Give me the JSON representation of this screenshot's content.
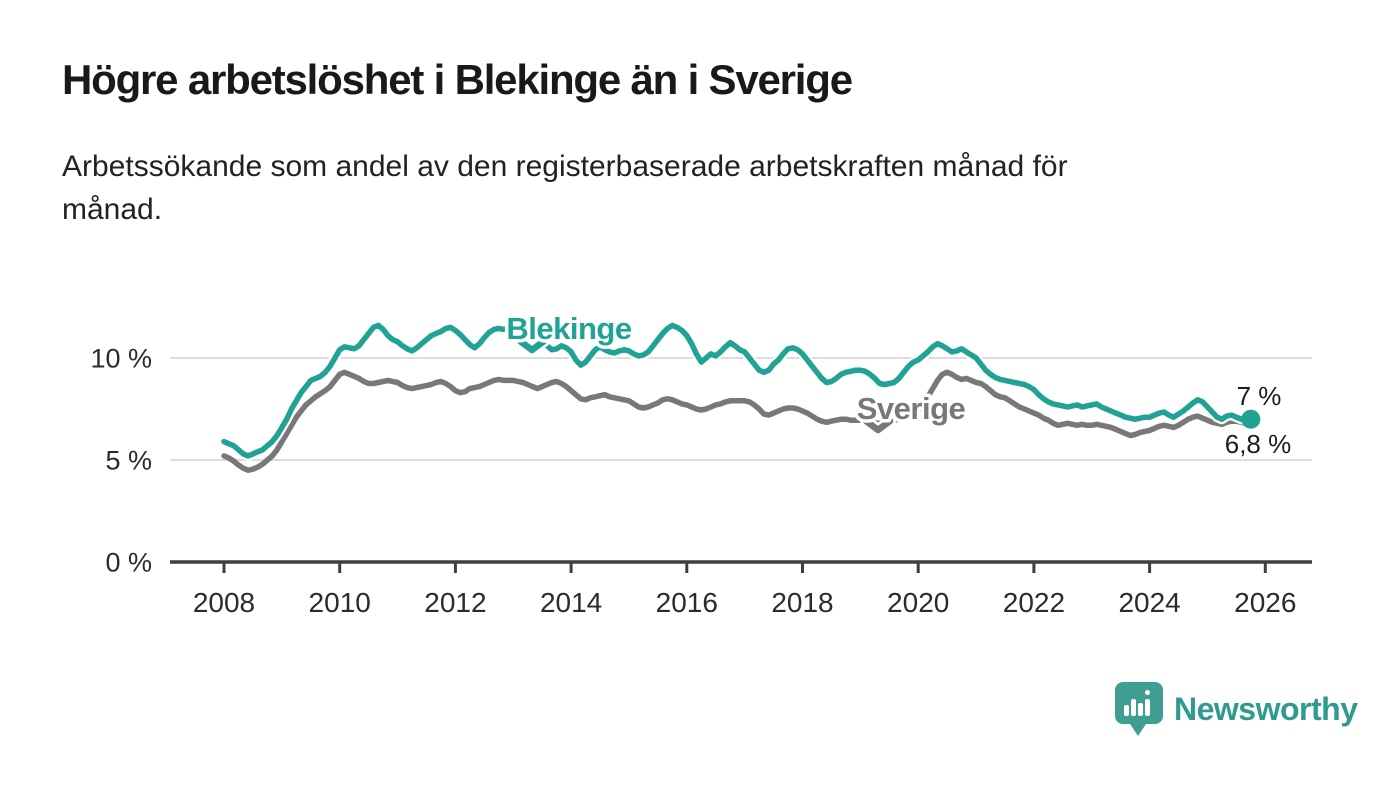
{
  "header": {
    "title": "Högre arbetslöshet i Blekinge än i Sverige",
    "subtitle": "Arbetssökande som andel av den registerbaserade arbetskraften månad för månad."
  },
  "footer": {
    "brand": "Newsworthy"
  },
  "colors": {
    "blekinge": "#20a295",
    "sverige": "#787878",
    "grid": "#dcdcdc",
    "axis": "#3f3f3f",
    "tick_text": "#2b2b2b",
    "value_text": "#1d1d1d",
    "brand_teal": "#2f9a8e",
    "brand_icon": "#3f9e92"
  },
  "chart_data": {
    "type": "line",
    "title": "Högre arbetslöshet i Blekinge än i Sverige",
    "subtitle": "Arbetssökande som andel av den registerbaserade arbetskraften månad för månad.",
    "unit": "%",
    "frequency": "monthly",
    "x_start": "2008-01",
    "x_end": "2025-10",
    "x_ticks": [
      2008,
      2010,
      2012,
      2014,
      2016,
      2018,
      2020,
      2022,
      2024,
      2026
    ],
    "y_ticks": [
      0,
      5,
      10
    ],
    "y_tick_labels": [
      "0 %",
      "5 %",
      "10 %"
    ],
    "ylim": [
      0,
      12.4
    ],
    "grid": "horizontal",
    "legend_position": "inline-labels",
    "series": [
      {
        "name": "Blekinge",
        "color": "#20a295",
        "end_label": "7 %",
        "values": [
          5.9,
          5.8,
          5.7,
          5.5,
          5.3,
          5.2,
          5.3,
          5.4,
          5.5,
          5.7,
          5.9,
          6.2,
          6.6,
          7.0,
          7.5,
          7.9,
          8.3,
          8.6,
          8.9,
          9.0,
          9.1,
          9.3,
          9.6,
          10.0,
          10.4,
          10.55,
          10.5,
          10.45,
          10.6,
          10.9,
          11.2,
          11.5,
          11.6,
          11.4,
          11.1,
          10.9,
          10.8,
          10.6,
          10.45,
          10.35,
          10.5,
          10.7,
          10.9,
          11.1,
          11.2,
          11.3,
          11.45,
          11.5,
          11.35,
          11.15,
          10.9,
          10.65,
          10.5,
          10.7,
          11.0,
          11.25,
          11.4,
          11.45,
          11.4,
          11.45,
          11.4,
          11.3,
          11.1,
          10.8,
          10.55,
          10.6,
          10.75,
          10.6,
          10.4,
          10.45,
          10.6,
          10.5,
          10.3,
          9.9,
          9.65,
          9.8,
          10.1,
          10.4,
          10.55,
          10.4,
          10.3,
          10.25,
          10.35,
          10.4,
          10.35,
          10.2,
          10.1,
          10.15,
          10.3,
          10.6,
          10.9,
          11.2,
          11.45,
          11.6,
          11.5,
          11.35,
          11.1,
          10.7,
          10.2,
          9.8,
          10.0,
          10.2,
          10.1,
          10.3,
          10.55,
          10.75,
          10.6,
          10.4,
          10.3,
          10.0,
          9.7,
          9.4,
          9.3,
          9.4,
          9.7,
          9.9,
          10.2,
          10.45,
          10.5,
          10.4,
          10.2,
          9.9,
          9.6,
          9.3,
          9.0,
          8.8,
          8.85,
          9.0,
          9.2,
          9.3,
          9.35,
          9.4,
          9.4,
          9.35,
          9.2,
          9.0,
          8.75,
          8.7,
          8.75,
          8.8,
          9.0,
          9.3,
          9.6,
          9.8,
          9.9,
          10.1,
          10.3,
          10.55,
          10.7,
          10.6,
          10.45,
          10.3,
          10.35,
          10.45,
          10.3,
          10.15,
          10.0,
          9.7,
          9.4,
          9.2,
          9.05,
          8.95,
          8.9,
          8.85,
          8.8,
          8.75,
          8.7,
          8.6,
          8.45,
          8.2,
          8.0,
          7.85,
          7.75,
          7.7,
          7.65,
          7.6,
          7.65,
          7.7,
          7.6,
          7.65,
          7.7,
          7.75,
          7.6,
          7.5,
          7.4,
          7.3,
          7.2,
          7.1,
          7.05,
          7.0,
          7.05,
          7.1,
          7.1,
          7.2,
          7.3,
          7.35,
          7.2,
          7.1,
          7.25,
          7.4,
          7.6,
          7.8,
          7.95,
          7.85,
          7.6,
          7.35,
          7.1,
          7.0,
          7.15,
          7.2,
          7.1,
          7.0,
          6.95,
          7.0
        ]
      },
      {
        "name": "Sverige",
        "color": "#787878",
        "end_label": "6,8 %",
        "values": [
          5.2,
          5.1,
          4.95,
          4.75,
          4.6,
          4.5,
          4.55,
          4.65,
          4.8,
          5.0,
          5.2,
          5.5,
          5.9,
          6.3,
          6.7,
          7.1,
          7.4,
          7.7,
          7.9,
          8.1,
          8.25,
          8.4,
          8.6,
          8.9,
          9.2,
          9.3,
          9.2,
          9.1,
          9.0,
          8.85,
          8.75,
          8.75,
          8.8,
          8.85,
          8.9,
          8.85,
          8.8,
          8.65,
          8.55,
          8.5,
          8.55,
          8.6,
          8.65,
          8.7,
          8.8,
          8.85,
          8.75,
          8.6,
          8.4,
          8.3,
          8.35,
          8.5,
          8.55,
          8.6,
          8.7,
          8.8,
          8.9,
          8.95,
          8.9,
          8.9,
          8.9,
          8.85,
          8.8,
          8.7,
          8.6,
          8.5,
          8.6,
          8.7,
          8.8,
          8.85,
          8.75,
          8.6,
          8.4,
          8.2,
          8.0,
          7.95,
          8.05,
          8.1,
          8.15,
          8.2,
          8.1,
          8.05,
          8.0,
          7.95,
          7.9,
          7.75,
          7.6,
          7.55,
          7.6,
          7.7,
          7.8,
          7.95,
          8.0,
          7.95,
          7.85,
          7.75,
          7.7,
          7.6,
          7.5,
          7.45,
          7.5,
          7.6,
          7.7,
          7.75,
          7.85,
          7.9,
          7.9,
          7.9,
          7.9,
          7.85,
          7.7,
          7.5,
          7.25,
          7.2,
          7.3,
          7.4,
          7.5,
          7.55,
          7.55,
          7.5,
          7.4,
          7.3,
          7.15,
          7.0,
          6.9,
          6.85,
          6.9,
          6.95,
          7.0,
          7.0,
          6.95,
          6.95,
          6.95,
          6.9,
          6.85,
          6.8,
          6.8,
          6.85,
          6.9,
          6.95,
          7.0,
          7.0,
          7.05,
          7.2,
          7.45,
          7.8,
          8.1,
          8.5,
          8.9,
          9.2,
          9.3,
          9.2,
          9.05,
          8.95,
          9.0,
          8.9,
          8.8,
          8.75,
          8.6,
          8.4,
          8.2,
          8.1,
          8.05,
          7.9,
          7.75,
          7.6,
          7.5,
          7.4,
          7.3,
          7.2,
          7.05,
          6.95,
          6.8,
          6.7,
          6.75,
          6.8,
          6.75,
          6.7,
          6.75,
          6.7,
          6.7,
          6.75,
          6.7,
          6.65,
          6.6,
          6.5,
          6.4,
          6.3,
          6.2,
          6.25,
          6.35,
          6.4,
          6.45,
          6.55,
          6.65,
          6.7,
          6.65,
          6.6,
          6.7,
          6.85,
          7.0,
          7.1,
          7.15,
          7.05,
          6.95,
          6.85,
          6.8,
          6.75,
          6.85,
          6.9,
          6.9,
          6.85,
          6.8,
          6.8
        ]
      }
    ]
  }
}
